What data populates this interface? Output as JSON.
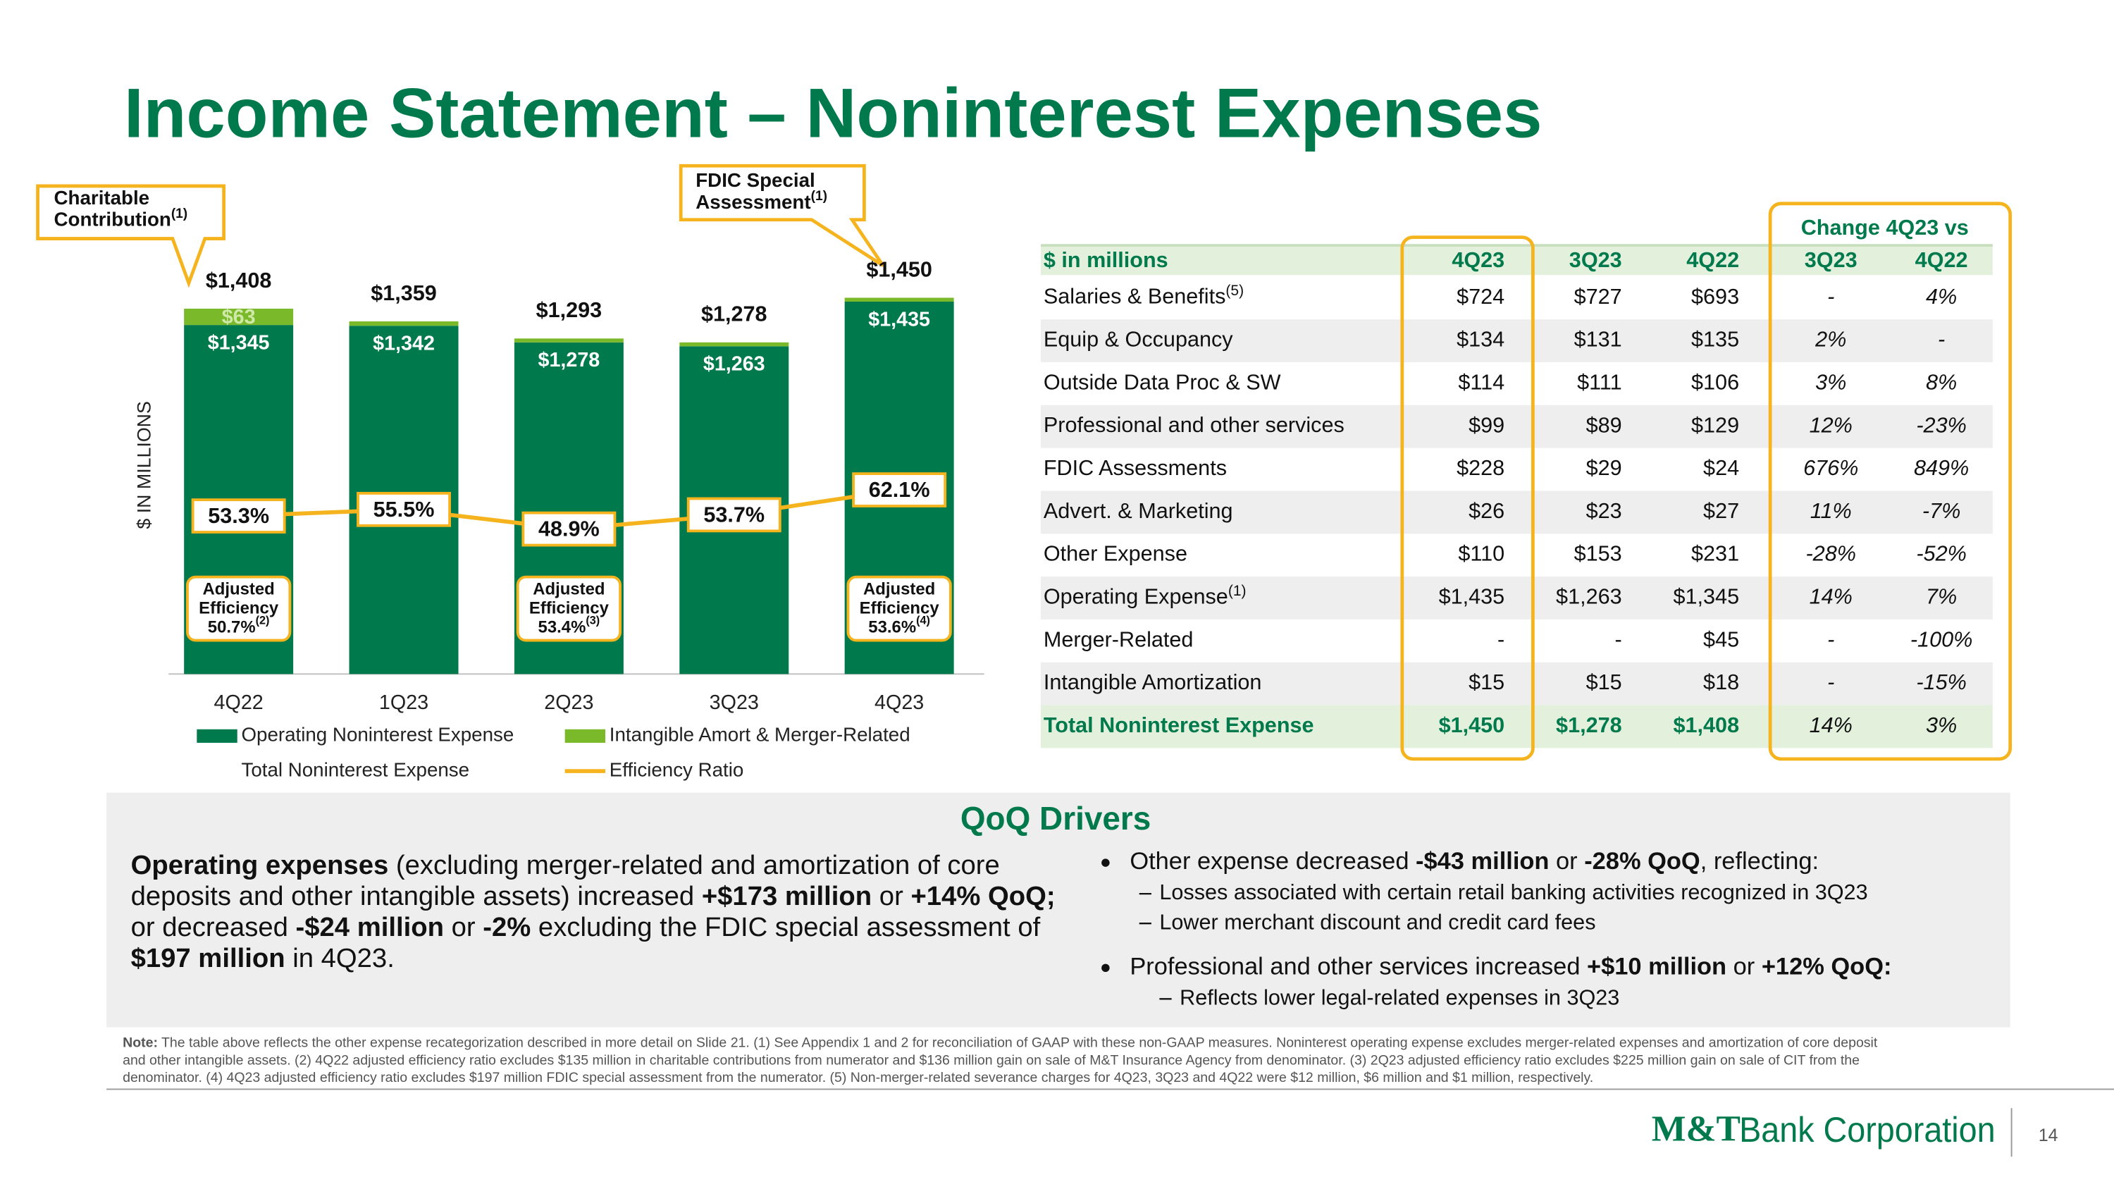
{
  "title": "Income Statement – Noninterest Expenses",
  "chart_data": {
    "type": "bar",
    "stacked": true,
    "categories": [
      "4Q22",
      "1Q23",
      "2Q23",
      "3Q23",
      "4Q23"
    ],
    "y_axis_label": "$ IN MILLIONS",
    "ylim": [
      0,
      1600
    ],
    "y2lim": [
      0,
      140
    ],
    "series": [
      {
        "name": "Operating Noninterest Expense",
        "type": "bar",
        "color": "#007a4d",
        "values": [
          1345,
          1342,
          1278,
          1263,
          1435
        ],
        "value_labels": [
          "$1,345",
          "$1,342",
          "$1,278",
          "$1,263",
          "$1,435"
        ]
      },
      {
        "name": "Intangible Amort & Merger-Related",
        "type": "bar",
        "color": "#7ab929",
        "values": [
          63,
          17,
          15,
          15,
          15
        ],
        "value_labels": [
          "$63",
          null,
          null,
          null,
          null
        ]
      },
      {
        "name": "Total Noninterest Expense",
        "type": "label",
        "values": [
          1408,
          1359,
          1293,
          1278,
          1450
        ],
        "value_labels": [
          "$1,408",
          "$1,359",
          "$1,293",
          "$1,278",
          "$1,450"
        ]
      },
      {
        "name": "Efficiency Ratio",
        "type": "line",
        "axis": "y2",
        "color": "#f5b41e",
        "values": [
          53.3,
          55.5,
          48.9,
          53.7,
          62.1
        ],
        "value_labels": [
          "53.3%",
          "55.5%",
          "48.9%",
          "53.7%",
          "62.1%"
        ]
      }
    ],
    "adjusted_efficiency": [
      {
        "lines": [
          "Adjusted",
          "Efficiency",
          "50.7%"
        ],
        "note": "(2)"
      },
      null,
      {
        "lines": [
          "Adjusted",
          "Efficiency",
          "53.4%"
        ],
        "note": "(3)"
      },
      null,
      {
        "lines": [
          "Adjusted",
          "Efficiency",
          "53.6%"
        ],
        "note": "(4)"
      }
    ],
    "callouts": [
      {
        "lines": [
          "Charitable",
          "Contribution"
        ],
        "note": "(1)"
      },
      {
        "lines": [
          "FDIC Special",
          "Assessment"
        ],
        "note": "(1)"
      }
    ]
  },
  "table": {
    "group_header": "Change 4Q23 vs",
    "header": [
      "$ in millions",
      "4Q23",
      "3Q23",
      "4Q22",
      "3Q23",
      "4Q22"
    ],
    "rows": [
      {
        "label": "Salaries & Benefits",
        "note": "(5)",
        "cells": [
          "$724",
          "$727",
          "$693",
          "-",
          "4%"
        ]
      },
      {
        "label": "Equip & Occupancy",
        "cells": [
          "$134",
          "$131",
          "$135",
          "2%",
          "-"
        ]
      },
      {
        "label": "Outside Data Proc & SW",
        "cells": [
          "$114",
          "$111",
          "$106",
          "3%",
          "8%"
        ]
      },
      {
        "label": "Professional and other services",
        "cells": [
          "$99",
          "$89",
          "$129",
          "12%",
          "-23%"
        ]
      },
      {
        "label": "FDIC Assessments",
        "cells": [
          "$228",
          "$29",
          "$24",
          "676%",
          "849%"
        ]
      },
      {
        "label": "Advert. & Marketing",
        "cells": [
          "$26",
          "$23",
          "$27",
          "11%",
          "-7%"
        ]
      },
      {
        "label": "Other Expense",
        "cells": [
          "$110",
          "$153",
          "$231",
          "-28%",
          "-52%"
        ]
      },
      {
        "label": "Operating Expense",
        "note": "(1)",
        "cells": [
          "$1,435",
          "$1,263",
          "$1,345",
          "14%",
          "7%"
        ]
      },
      {
        "label": "Merger-Related",
        "cells": [
          "-",
          "-",
          "$45",
          "-",
          "-100%"
        ]
      },
      {
        "label": "Intangible Amortization",
        "cells": [
          "$15",
          "$15",
          "$18",
          "-",
          "-15%"
        ]
      },
      {
        "label": "Total Noninterest Expense",
        "cells": [
          "$1,450",
          "$1,278",
          "$1,408",
          "14%",
          "3%"
        ]
      }
    ]
  },
  "drivers": {
    "title": "QoQ Drivers",
    "paragraph": [
      [
        {
          "text": "Operating expenses",
          "bold": true
        },
        {
          "text": " (excluding merger-related and amortization of core"
        }
      ],
      [
        {
          "text": "deposits and other intangible assets) increased "
        },
        {
          "text": "+$173 million",
          "bold": true
        },
        {
          "text": " or "
        },
        {
          "text": "+14% QoQ;",
          "bold": true
        }
      ],
      [
        {
          "text": "or decreased "
        },
        {
          "text": "-$24 million",
          "bold": true
        },
        {
          "text": " or "
        },
        {
          "text": "-2%",
          "bold": true
        },
        {
          "text": " excluding the FDIC special assessment of"
        }
      ],
      [
        {
          "text": "$197 million",
          "bold": true
        },
        {
          "text": " in 4Q23."
        }
      ]
    ],
    "bullets": [
      {
        "segments": [
          {
            "text": "Other expense decreased "
          },
          {
            "text": "-$43 million",
            "bold": true
          },
          {
            "text": " or "
          },
          {
            "text": "-28% QoQ",
            "bold": true
          },
          {
            "text": ", reflecting:"
          }
        ],
        "subs": [
          "Losses associated with certain retail banking activities recognized in 3Q23",
          "Lower merchant discount and credit card fees"
        ]
      },
      {
        "segments": [
          {
            "text": "Professional and other services increased "
          },
          {
            "text": "+$10 million",
            "bold": true
          },
          {
            "text": " or "
          },
          {
            "text": "+12% QoQ:",
            "bold": true
          }
        ],
        "subs": [
          "Reflects lower legal-related expenses in 3Q23"
        ]
      }
    ]
  },
  "footnote": {
    "label": "Note:",
    "lines": [
      " The table above reflects the other expense recategorization described in more detail on Slide 21. (1) See Appendix 1 and 2 for reconciliation of GAAP with these non-GAAP measures. Noninterest operating expense excludes merger-related expenses and amortization of core deposit",
      "and other intangible assets. (2) 4Q22 adjusted efficiency ratio excludes $135 million in charitable contributions from numerator and $136 million gain on sale of M&T Insurance Agency from denominator. (3) 2Q23 adjusted efficiency ratio excludes $225 million gain on sale of CIT from the",
      "denominator. (4) 4Q23 adjusted efficiency ratio excludes $197 million FDIC special assessment from the numerator. (5) Non-merger-related severance charges for 4Q23, 3Q23 and 4Q22 were $12 million, $6 million and $1 million, respectively."
    ]
  },
  "logo": {
    "mark": "M&T",
    "name": "Bank Corporation"
  },
  "page_number": "14"
}
